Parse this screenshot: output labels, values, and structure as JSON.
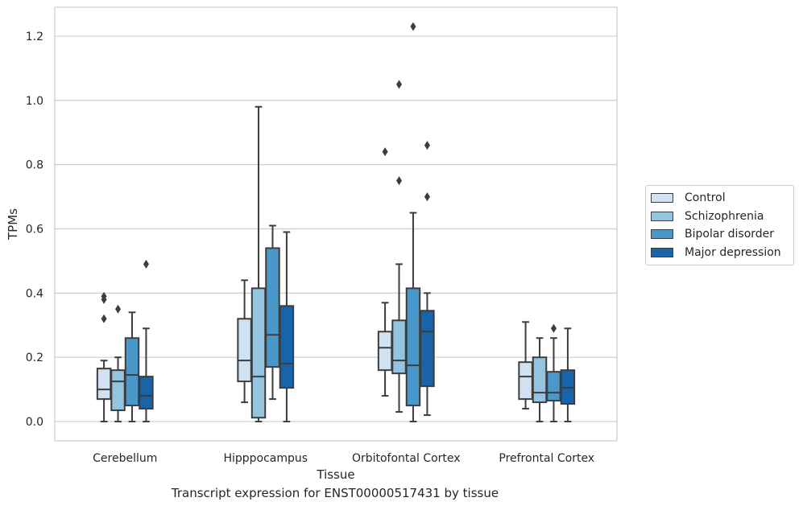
{
  "caption": "Transcript expression for ENST00000517431 by tissue",
  "chart_data": {
    "type": "box",
    "xlabel": "Tissue",
    "ylabel": "TPMs",
    "ylim": [
      -0.06,
      1.29
    ],
    "yticks": [
      0.0,
      0.2,
      0.4,
      0.6,
      0.8,
      1.0,
      1.2
    ],
    "ytick_labels": [
      "0.0",
      "0.2",
      "0.4",
      "0.6",
      "0.8",
      "1.0",
      "1.2"
    ],
    "grid": "horizontal",
    "legend_position": "right",
    "categories": [
      "Cerebellum",
      "Hipppocampus",
      "Orbitofontal Cortex",
      "Prefrontal Cortex"
    ],
    "series": [
      {
        "name": "Control",
        "color": "#d0e1f2",
        "boxes": [
          {
            "whisker_low": 0.0,
            "q1": 0.07,
            "median": 0.1,
            "q3": 0.165,
            "whisker_high": 0.19,
            "outliers": [
              0.32,
              0.38,
              0.39
            ]
          },
          {
            "whisker_low": 0.06,
            "q1": 0.125,
            "median": 0.19,
            "q3": 0.32,
            "whisker_high": 0.44,
            "outliers": []
          },
          {
            "whisker_low": 0.08,
            "q1": 0.16,
            "median": 0.23,
            "q3": 0.28,
            "whisker_high": 0.37,
            "outliers": [
              0.84
            ]
          },
          {
            "whisker_low": 0.04,
            "q1": 0.07,
            "median": 0.14,
            "q3": 0.185,
            "whisker_high": 0.31,
            "outliers": []
          }
        ]
      },
      {
        "name": "Schizophrenia",
        "color": "#94c4df",
        "boxes": [
          {
            "whisker_low": 0.0,
            "q1": 0.035,
            "median": 0.125,
            "q3": 0.16,
            "whisker_high": 0.2,
            "outliers": [
              0.35
            ]
          },
          {
            "whisker_low": 0.0,
            "q1": 0.012,
            "median": 0.14,
            "q3": 0.415,
            "whisker_high": 0.98,
            "outliers": []
          },
          {
            "whisker_low": 0.03,
            "q1": 0.15,
            "median": 0.19,
            "q3": 0.315,
            "whisker_high": 0.49,
            "outliers": [
              0.75,
              1.05
            ]
          },
          {
            "whisker_low": 0.0,
            "q1": 0.06,
            "median": 0.09,
            "q3": 0.2,
            "whisker_high": 0.26,
            "outliers": []
          }
        ]
      },
      {
        "name": "Bipolar disorder",
        "color": "#4a98c9",
        "boxes": [
          {
            "whisker_low": 0.0,
            "q1": 0.05,
            "median": 0.145,
            "q3": 0.26,
            "whisker_high": 0.34,
            "outliers": []
          },
          {
            "whisker_low": 0.07,
            "q1": 0.17,
            "median": 0.27,
            "q3": 0.54,
            "whisker_high": 0.61,
            "outliers": []
          },
          {
            "whisker_low": 0.0,
            "q1": 0.05,
            "median": 0.175,
            "q3": 0.415,
            "whisker_high": 0.65,
            "outliers": [
              1.23
            ]
          },
          {
            "whisker_low": 0.0,
            "q1": 0.065,
            "median": 0.09,
            "q3": 0.155,
            "whisker_high": 0.26,
            "outliers": [
              0.29
            ]
          }
        ]
      },
      {
        "name": "Major depression",
        "color": "#1764ab",
        "boxes": [
          {
            "whisker_low": 0.0,
            "q1": 0.04,
            "median": 0.08,
            "q3": 0.14,
            "whisker_high": 0.29,
            "outliers": [
              0.49
            ]
          },
          {
            "whisker_low": 0.0,
            "q1": 0.105,
            "median": 0.18,
            "q3": 0.36,
            "whisker_high": 0.59,
            "outliers": []
          },
          {
            "whisker_low": 0.02,
            "q1": 0.11,
            "median": 0.28,
            "q3": 0.345,
            "whisker_high": 0.4,
            "outliers": [
              0.7,
              0.86
            ]
          },
          {
            "whisker_low": 0.0,
            "q1": 0.055,
            "median": 0.105,
            "q3": 0.16,
            "whisker_high": 0.29,
            "outliers": []
          }
        ]
      }
    ],
    "colors": {
      "grid": "#cccccc",
      "frame": "#cccccc",
      "box_edge": "#3d3d3d"
    }
  }
}
